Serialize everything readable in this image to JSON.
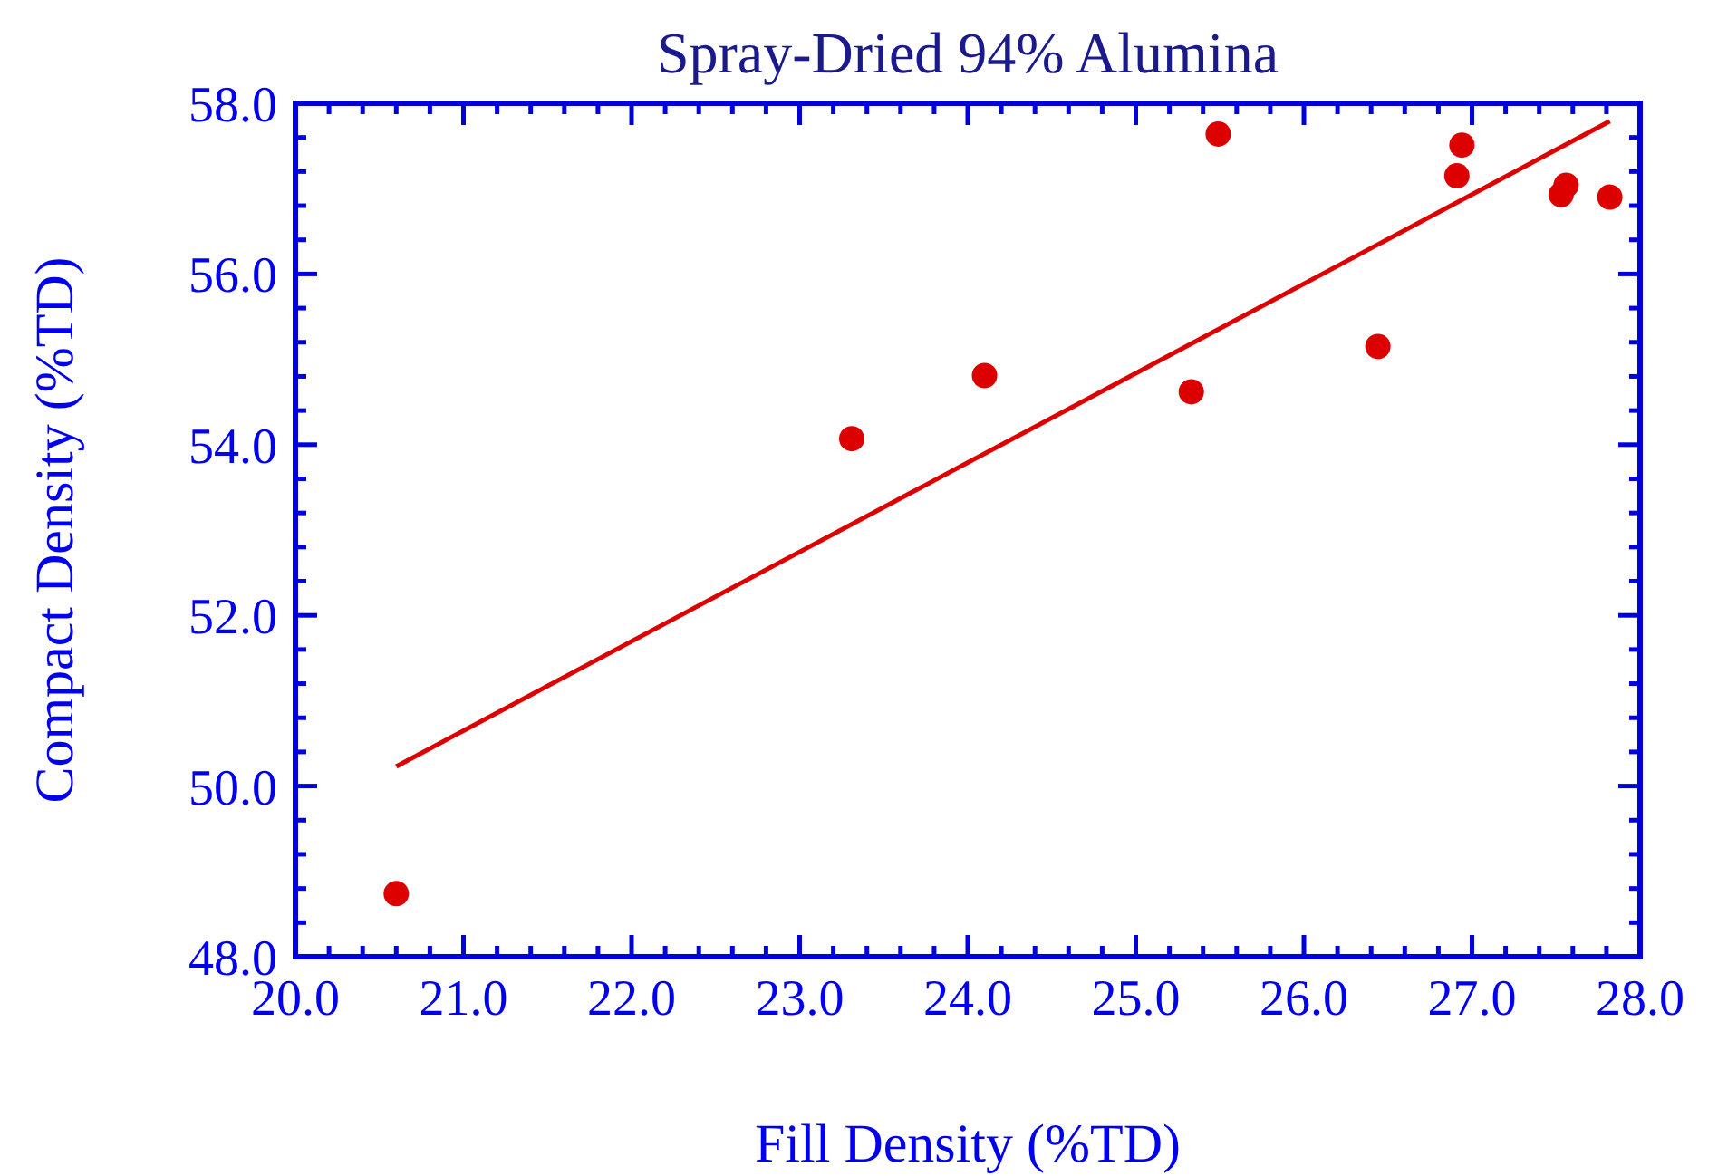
{
  "chart_data": {
    "type": "scatter",
    "title": "Spray-Dried 94% Alumina",
    "xlabel": "Fill Density (%TD)",
    "ylabel": "Compact Density (%TD)",
    "xlim": [
      20,
      28
    ],
    "ylim": [
      48,
      58
    ],
    "xticks": [
      {
        "value": 20,
        "label": "20.0"
      },
      {
        "value": 21,
        "label": "21.0"
      },
      {
        "value": 22,
        "label": "22.0"
      },
      {
        "value": 23,
        "label": "23.0"
      },
      {
        "value": 24,
        "label": "24.0"
      },
      {
        "value": 25,
        "label": "25.0"
      },
      {
        "value": 26,
        "label": "26.0"
      },
      {
        "value": 27,
        "label": "27.0"
      },
      {
        "value": 28,
        "label": "28.0"
      }
    ],
    "yticks": [
      {
        "value": 48,
        "label": "48.0"
      },
      {
        "value": 50,
        "label": "50.0"
      },
      {
        "value": 52,
        "label": "52.0"
      },
      {
        "value": 54,
        "label": "54.0"
      },
      {
        "value": 56,
        "label": "56.0"
      },
      {
        "value": 58,
        "label": "58.0"
      }
    ],
    "marker": "circle",
    "series": [
      {
        "color": "#dd0000",
        "x": [
          20.6,
          23.31,
          24.1,
          25.33,
          25.49,
          26.44,
          26.91,
          26.94,
          27.53,
          27.56,
          27.82
        ],
        "values": [
          48.74,
          54.07,
          54.81,
          54.62,
          57.64,
          55.15,
          57.15,
          57.51,
          56.93,
          57.04,
          56.9
        ]
      },
      {
        "type": "line",
        "color": "#dd0000",
        "marker": "none",
        "x": [
          20.6,
          27.82
        ],
        "values": [
          50.23,
          57.79
        ]
      }
    ]
  }
}
